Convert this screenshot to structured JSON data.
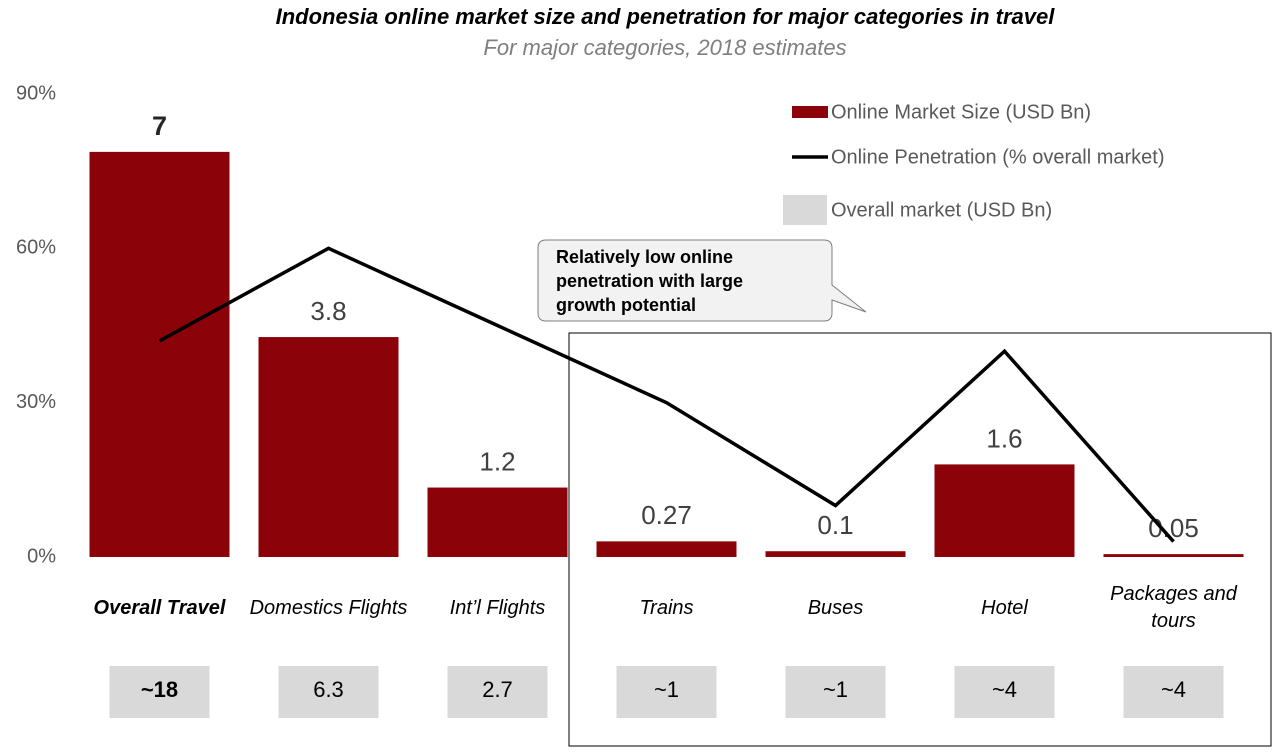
{
  "chart_data": {
    "type": "bar_line",
    "title": "Indonesia online market size and penetration for major categories in travel",
    "subtitle": "For major categories, 2018 estimates",
    "categories": [
      "Overall Travel",
      "Domestics Flights",
      "Int’l Flights",
      "Trains",
      "Buses",
      "Hotel",
      "Packages and tours"
    ],
    "series": [
      {
        "name": "Online Market Size (USD Bn)",
        "color": "#8b0309",
        "type": "bar",
        "axis": "y2",
        "values": [
          7,
          3.8,
          1.2,
          0.27,
          0.1,
          1.6,
          0.05
        ]
      },
      {
        "name": "Online Penetration (% overall market)",
        "color": "#000000",
        "type": "line",
        "values": [
          42,
          60,
          45,
          30,
          10,
          40,
          3
        ]
      }
    ],
    "overall_market": {
      "name": "Overall market (USD Bn)",
      "color": "#d9d9d9",
      "labels": [
        "~18",
        "6.3",
        "2.7",
        "~1",
        "~1",
        "~4",
        "~4"
      ]
    },
    "ylim": [
      0,
      90
    ],
    "yticks": [
      {
        "value": 0,
        "label": "0%"
      },
      {
        "value": 30,
        "label": "30%"
      },
      {
        "value": 60,
        "label": "60%"
      },
      {
        "value": 90,
        "label": "90%"
      }
    ],
    "y2lim": [
      0,
      8
    ],
    "annotation": "Relatively low online penetration with large growth potential",
    "grid": false
  }
}
